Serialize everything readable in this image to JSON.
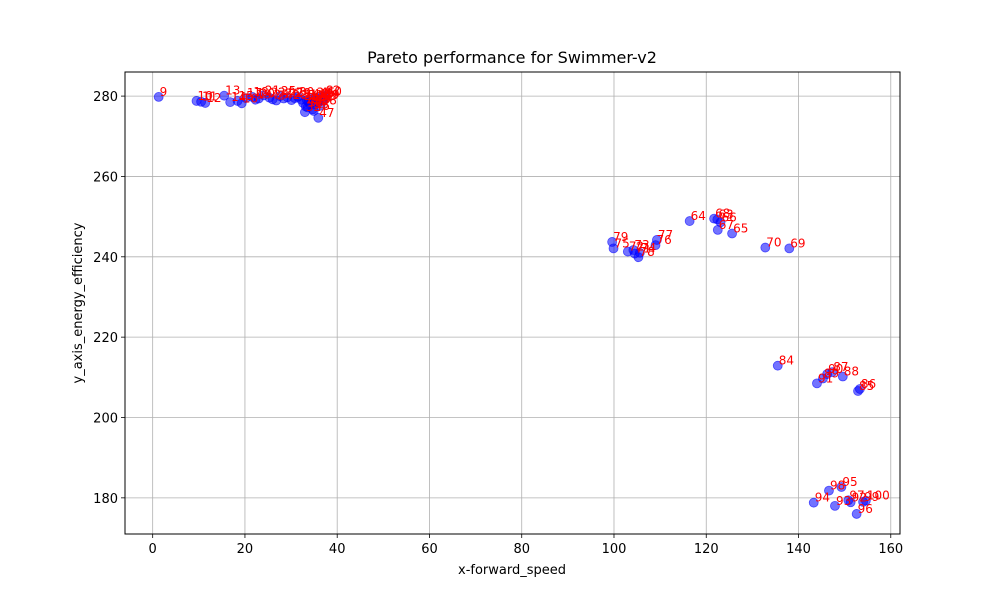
{
  "chart_data": {
    "type": "scatter",
    "title": "Pareto performance for Swimmer-v2",
    "xlabel": "x-forward_speed",
    "ylabel": "y_axis_energy_efficiency",
    "xlim": [
      -6,
      162
    ],
    "ylim": [
      171,
      286
    ],
    "xticks": [
      0,
      20,
      40,
      60,
      80,
      100,
      120,
      140,
      160
    ],
    "yticks": [
      180,
      200,
      220,
      240,
      260,
      280
    ],
    "grid": true,
    "colors": {
      "points": "#0000ff",
      "labels": "#ff0000"
    },
    "points": [
      {
        "label": "9",
        "x": 1.3,
        "y": 279.8
      },
      {
        "label": "10",
        "x": 9.5,
        "y": 278.8
      },
      {
        "label": "11",
        "x": 10.5,
        "y": 278.6
      },
      {
        "label": "12",
        "x": 11.4,
        "y": 278.3
      },
      {
        "label": "13",
        "x": 15.5,
        "y": 280.1
      },
      {
        "label": "14",
        "x": 16.8,
        "y": 278.5
      },
      {
        "label": "15",
        "x": 18.4,
        "y": 278.8
      },
      {
        "label": "16",
        "x": 19.3,
        "y": 278.2
      },
      {
        "label": "17",
        "x": 20.2,
        "y": 279.5
      },
      {
        "label": "18",
        "x": 21.6,
        "y": 279.8
      },
      {
        "label": "19",
        "x": 22.3,
        "y": 279.1
      },
      {
        "label": "20",
        "x": 23.0,
        "y": 279.4
      },
      {
        "label": "21",
        "x": 24.1,
        "y": 280.2
      },
      {
        "label": "22",
        "x": 25.3,
        "y": 279.6
      },
      {
        "label": "23",
        "x": 26.0,
        "y": 279.2
      },
      {
        "label": "24",
        "x": 26.8,
        "y": 278.9
      },
      {
        "label": "25",
        "x": 27.6,
        "y": 280.0
      },
      {
        "label": "26",
        "x": 28.4,
        "y": 279.4
      },
      {
        "label": "27",
        "x": 29.2,
        "y": 279.7
      },
      {
        "label": "28",
        "x": 30.1,
        "y": 279.0
      },
      {
        "label": "29",
        "x": 30.8,
        "y": 279.5
      },
      {
        "label": "30",
        "x": 31.5,
        "y": 279.8
      },
      {
        "label": "31",
        "x": 32.2,
        "y": 279.1
      },
      {
        "label": "32",
        "x": 33.0,
        "y": 276.0
      },
      {
        "label": "33",
        "x": 33.6,
        "y": 277.2
      },
      {
        "label": "34",
        "x": 34.1,
        "y": 278.0
      },
      {
        "label": "35",
        "x": 34.7,
        "y": 276.7
      },
      {
        "label": "36",
        "x": 35.3,
        "y": 279.6
      },
      {
        "label": "37",
        "x": 35.9,
        "y": 278.4
      },
      {
        "label": "38",
        "x": 36.4,
        "y": 277.6
      },
      {
        "label": "39",
        "x": 37.0,
        "y": 279.2
      },
      {
        "label": "40",
        "x": 37.5,
        "y": 279.9
      },
      {
        "label": "41",
        "x": 34.4,
        "y": 279.3
      },
      {
        "label": "42",
        "x": 33.8,
        "y": 278.6
      },
      {
        "label": "43",
        "x": 35.0,
        "y": 277.9
      },
      {
        "label": "44",
        "x": 32.6,
        "y": 278.3
      },
      {
        "label": "45",
        "x": 36.1,
        "y": 279.7
      },
      {
        "label": "46",
        "x": 34.9,
        "y": 276.3
      },
      {
        "label": "47",
        "x": 35.9,
        "y": 274.6
      },
      {
        "label": "48",
        "x": 33.2,
        "y": 277.4
      },
      {
        "label": "49",
        "x": 36.8,
        "y": 278.9
      },
      {
        "label": "50",
        "x": 33.4,
        "y": 279.0
      },
      {
        "label": "51",
        "x": 35.6,
        "y": 278.7
      },
      {
        "label": "62",
        "x": 37.2,
        "y": 280.1
      },
      {
        "label": "63",
        "x": 122.4,
        "y": 249.3
      },
      {
        "label": "64",
        "x": 116.4,
        "y": 248.9
      },
      {
        "label": "65",
        "x": 125.6,
        "y": 245.8
      },
      {
        "label": "66",
        "x": 123.1,
        "y": 248.6
      },
      {
        "label": "67",
        "x": 122.5,
        "y": 246.7
      },
      {
        "label": "68",
        "x": 121.7,
        "y": 249.5
      },
      {
        "label": "69",
        "x": 138.0,
        "y": 242.1
      },
      {
        "label": "70",
        "x": 132.8,
        "y": 242.3
      },
      {
        "label": "71",
        "x": 104.5,
        "y": 240.8
      },
      {
        "label": "72",
        "x": 103.0,
        "y": 241.3
      },
      {
        "label": "73",
        "x": 104.2,
        "y": 241.7
      },
      {
        "label": "74",
        "x": 105.6,
        "y": 241.0
      },
      {
        "label": "75",
        "x": 99.9,
        "y": 242.1
      },
      {
        "label": "76",
        "x": 109.0,
        "y": 242.9
      },
      {
        "label": "77",
        "x": 109.3,
        "y": 244.2
      },
      {
        "label": "78",
        "x": 105.3,
        "y": 239.9
      },
      {
        "label": "79",
        "x": 99.6,
        "y": 243.7
      },
      {
        "label": "84",
        "x": 135.5,
        "y": 212.9
      },
      {
        "label": "85",
        "x": 152.9,
        "y": 206.6
      },
      {
        "label": "86",
        "x": 153.3,
        "y": 207.1
      },
      {
        "label": "87",
        "x": 147.3,
        "y": 211.3
      },
      {
        "label": "88",
        "x": 149.6,
        "y": 210.2
      },
      {
        "label": "89",
        "x": 145.3,
        "y": 209.7
      },
      {
        "label": "90",
        "x": 146.2,
        "y": 210.8
      },
      {
        "label": "91",
        "x": 144.0,
        "y": 208.5
      },
      {
        "label": "92",
        "x": 151.3,
        "y": 178.9
      },
      {
        "label": "93",
        "x": 147.9,
        "y": 178.0
      },
      {
        "label": "94",
        "x": 143.3,
        "y": 178.8
      },
      {
        "label": "95",
        "x": 149.3,
        "y": 182.7
      },
      {
        "label": "96",
        "x": 152.6,
        "y": 176.0
      },
      {
        "label": "97",
        "x": 150.8,
        "y": 179.4
      },
      {
        "label": "98",
        "x": 146.6,
        "y": 181.8
      },
      {
        "label": "99",
        "x": 154.0,
        "y": 179.0
      },
      {
        "label": "100",
        "x": 154.6,
        "y": 179.3
      }
    ]
  }
}
